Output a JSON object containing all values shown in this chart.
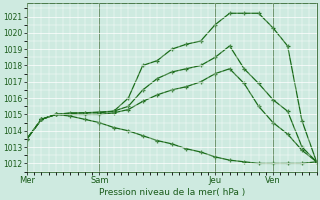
{
  "title": "Pression niveau de la mer( hPa )",
  "bg_color": "#ceeae0",
  "grid_color": "#ffffff",
  "line_color": "#1a6b1a",
  "text_color": "#1a5c1a",
  "vline_color": "#4a7a4a",
  "ylim": [
    1011.5,
    1021.8
  ],
  "yticks": [
    1012,
    1013,
    1014,
    1015,
    1016,
    1017,
    1018,
    1019,
    1020,
    1021
  ],
  "xtick_labels": [
    "Mer",
    "Sam",
    "Jeu",
    "Ven"
  ],
  "series": {
    "s1": {
      "x": [
        0,
        0.5,
        1.0,
        1.5,
        2.0,
        2.5,
        3.0,
        3.5,
        4.0,
        4.5,
        5.0,
        5.5,
        6.0,
        6.5,
        7.0,
        7.5,
        8.0,
        8.5,
        9.0,
        9.5,
        10.0
      ],
      "y": [
        1013.5,
        1014.7,
        1015.0,
        1015.1,
        1015.1,
        1015.15,
        1015.2,
        1016.0,
        1018.0,
        1018.3,
        1019.0,
        1019.3,
        1019.5,
        1020.5,
        1021.2,
        1021.2,
        1021.2,
        1020.3,
        1019.2,
        1014.6,
        1012.1
      ]
    },
    "s2": {
      "x": [
        0,
        0.5,
        1.0,
        1.5,
        2.0,
        2.5,
        3.0,
        3.5,
        4.0,
        4.5,
        5.0,
        5.5,
        6.0,
        6.5,
        7.0,
        7.5,
        8.0,
        8.5,
        9.0,
        9.5,
        10.0
      ],
      "y": [
        1013.5,
        1014.7,
        1015.0,
        1015.05,
        1015.1,
        1015.1,
        1015.2,
        1015.5,
        1016.5,
        1017.2,
        1017.6,
        1017.8,
        1018.0,
        1018.5,
        1019.2,
        1017.8,
        1016.9,
        1015.9,
        1015.2,
        1013.0,
        1012.1
      ]
    },
    "s3": {
      "x": [
        0,
        0.5,
        1.0,
        1.5,
        2.0,
        2.5,
        3.0,
        3.5,
        4.0,
        4.5,
        5.0,
        5.5,
        6.0,
        6.5,
        7.0,
        7.5,
        8.0,
        8.5,
        9.0,
        9.5,
        10.0
      ],
      "y": [
        1013.5,
        1014.7,
        1015.0,
        1015.0,
        1015.0,
        1015.0,
        1015.1,
        1015.3,
        1015.8,
        1016.2,
        1016.5,
        1016.7,
        1017.0,
        1017.5,
        1017.8,
        1016.9,
        1015.5,
        1014.5,
        1013.8,
        1012.8,
        1012.1
      ]
    },
    "s4": {
      "x": [
        0,
        0.5,
        1.0,
        1.5,
        2.0,
        2.5,
        3.0,
        3.5,
        4.0,
        4.5,
        5.0,
        5.5,
        6.0,
        6.5,
        7.0,
        7.5,
        8.0,
        8.5,
        9.0,
        9.5,
        10.0
      ],
      "y": [
        1013.5,
        1014.7,
        1015.0,
        1014.9,
        1014.7,
        1014.5,
        1014.2,
        1014.0,
        1013.7,
        1013.4,
        1013.2,
        1012.9,
        1012.7,
        1012.4,
        1012.2,
        1012.1,
        1012.0,
        1012.0,
        1012.0,
        1012.0,
        1012.1
      ]
    }
  },
  "x_mer": 0.0,
  "x_sam": 2.5,
  "x_jeu": 6.5,
  "x_ven": 8.5,
  "xlim": [
    0,
    10.0
  ]
}
